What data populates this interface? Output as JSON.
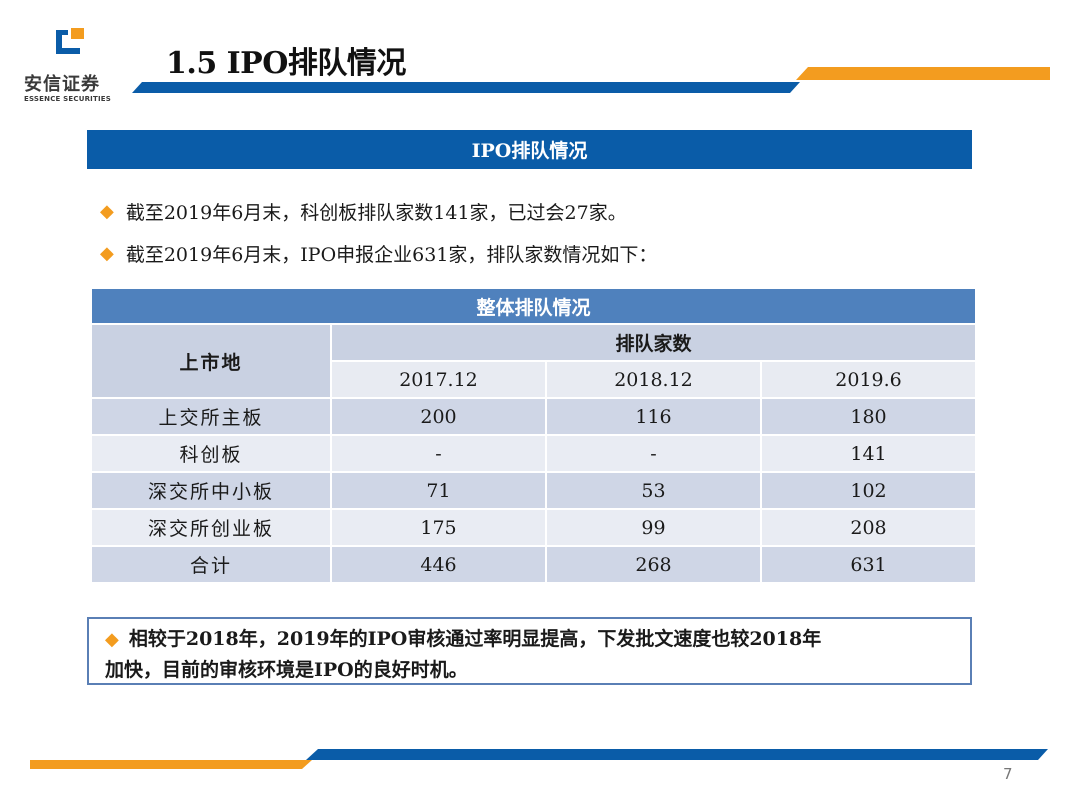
{
  "brand": {
    "name_cn": "安信证券",
    "name_en": "ESSENCE SECURITIES",
    "colors": {
      "blue": "#0a5ca8",
      "orange": "#f39c1f",
      "table_header": "#4f81bd"
    }
  },
  "page_title": "1.5 IPO排队情况",
  "section_header": "IPO排队情况",
  "bullets": [
    "截至2019年6月末，科创板排队家数141家，已过会27家。",
    "截至2019年6月末，IPO申报企业631家，排队家数情况如下："
  ],
  "table": {
    "caption": "整体排队情况",
    "row_header": "上市地",
    "group_header": "排队家数",
    "columns": [
      "2017.12",
      "2018.12",
      "2019.6"
    ],
    "rows": [
      {
        "label": "上交所主板",
        "values": [
          "200",
          "116",
          "180"
        ]
      },
      {
        "label": "科创板",
        "values": [
          "-",
          "-",
          "141"
        ]
      },
      {
        "label": "深交所中小板",
        "values": [
          "71",
          "53",
          "102"
        ]
      },
      {
        "label": "深交所创业板",
        "values": [
          "175",
          "99",
          "208"
        ]
      },
      {
        "label": "合计",
        "values": [
          "446",
          "268",
          "631"
        ]
      }
    ]
  },
  "conclusion": {
    "line1": "相较于2018年，2019年的IPO审核通过率明显提高，下发批文速度也较2018年",
    "line2": "加快，目前的审核环境是IPO的良好时机。"
  },
  "page_number": "7"
}
